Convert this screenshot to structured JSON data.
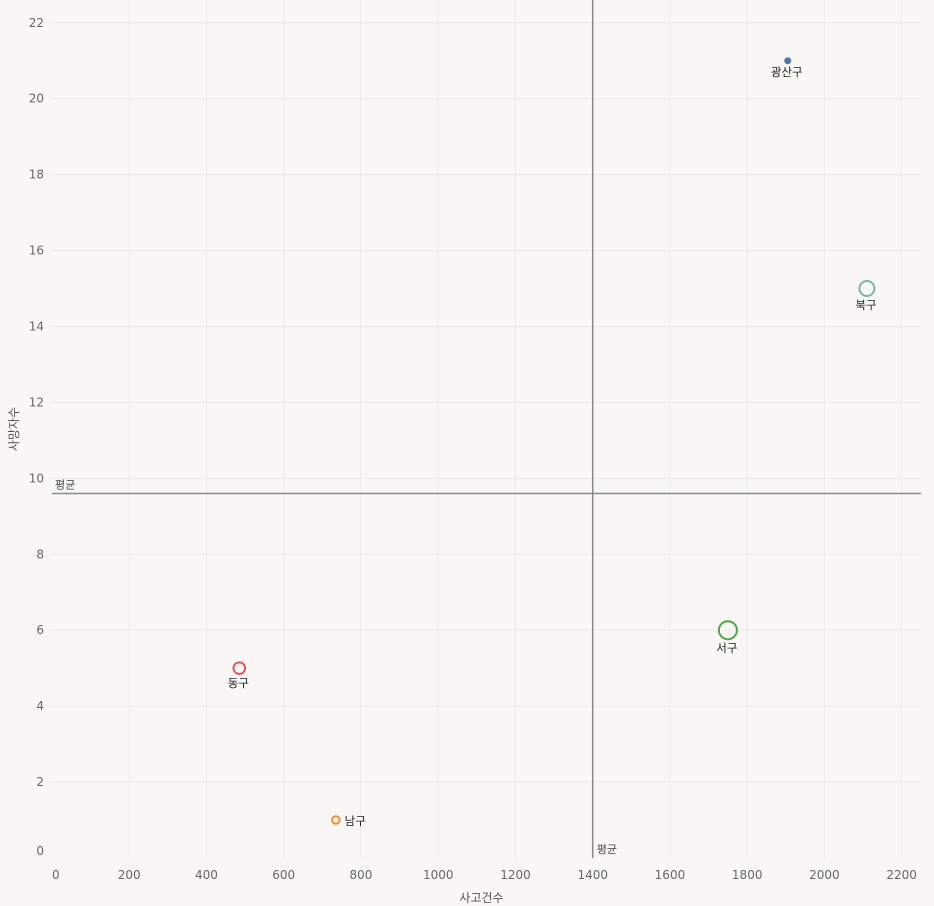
{
  "chart_data": {
    "type": "scatter",
    "title": "",
    "xlabel": "사고건수",
    "ylabel": "사망자수",
    "xlim": [
      0,
      2250
    ],
    "ylim": [
      0,
      22.6
    ],
    "x_ticks": [
      0,
      200,
      400,
      600,
      800,
      1000,
      1200,
      1400,
      1600,
      1800,
      2000,
      2200
    ],
    "y_ticks": [
      0,
      2,
      4,
      6,
      8,
      10,
      12,
      14,
      16,
      18,
      20,
      22
    ],
    "grid": true,
    "reference_lines": [
      {
        "axis": "x",
        "label": "평균",
        "value": 1400
      },
      {
        "axis": "y",
        "label": "평균",
        "value": 9.6
      }
    ],
    "points": [
      {
        "label": "광산구",
        "x": 1905,
        "y": 21,
        "color": "#4e79a7",
        "size_level": 1,
        "label_position": "below"
      },
      {
        "label": "북구",
        "x": 2110,
        "y": 15,
        "color": "#76b7b2",
        "size_level": 4,
        "label_position": "below"
      },
      {
        "label": "서구",
        "x": 1750,
        "y": 6,
        "color": "#59a14f",
        "size_level": 5,
        "label_position": "below"
      },
      {
        "label": "동구",
        "x": 485,
        "y": 5,
        "color": "#e15759",
        "size_level": 3,
        "label_position": "below"
      },
      {
        "label": "남구",
        "x": 735,
        "y": 1,
        "color": "#f28e2b",
        "size_level": 2,
        "label_position": "right"
      }
    ]
  }
}
